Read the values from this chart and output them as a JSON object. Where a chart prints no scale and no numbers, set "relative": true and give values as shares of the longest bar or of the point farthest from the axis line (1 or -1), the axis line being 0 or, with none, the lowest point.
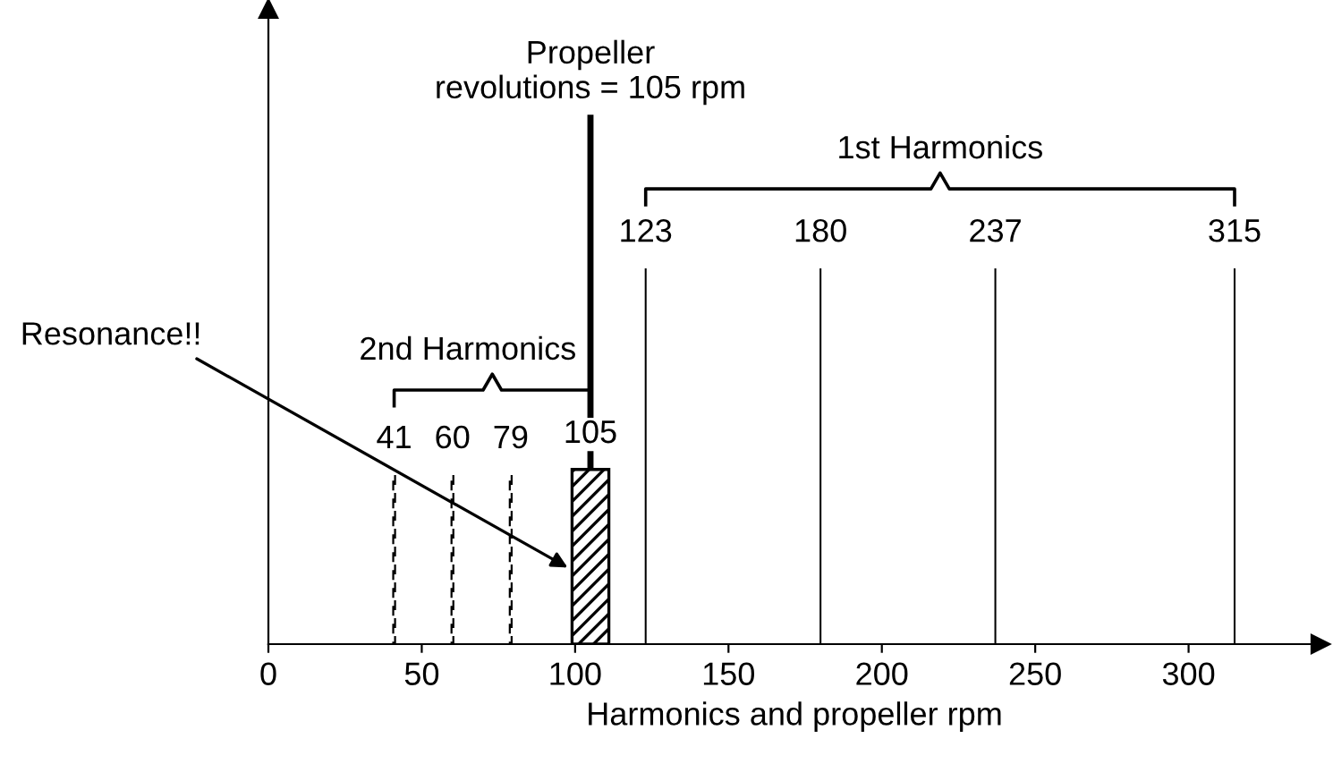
{
  "chart_data": {
    "type": "bar",
    "relative": true,
    "xlabel": "Harmonics and propeller rpm",
    "xlim": [
      0,
      343
    ],
    "xticks": [
      0,
      50,
      100,
      150,
      200,
      250,
      300
    ],
    "grid": false,
    "legend": false,
    "series": [
      {
        "x": [
          41,
          60,
          79
        ],
        "values": [
          0.32,
          0.32,
          0.32
        ],
        "color": "#000000",
        "line_style": "dashed"
      },
      {
        "x": [
          105
        ],
        "values": [
          0.33
        ],
        "color": "#000000"
      },
      {
        "x": [
          105
        ],
        "values": [
          1.0
        ],
        "color": "#000000",
        "line_style": "solid"
      },
      {
        "x": [
          123,
          180,
          237,
          315
        ],
        "values": [
          0.71,
          0.71,
          0.71,
          0.71
        ],
        "color": "#000000",
        "line_style": "solid"
      }
    ],
    "annotations": [
      "41",
      "60",
      "79",
      "105",
      "123",
      "180",
      "237",
      "315",
      "2nd Harmonics",
      "1st Harmonics",
      {
        "text": "Propeller\nrevolutions = 105 rpm",
        "x": 105,
        "y": 1.0
      },
      {
        "text": "Resonance!!",
        "x": 99,
        "y": 0.14
      }
    ]
  }
}
